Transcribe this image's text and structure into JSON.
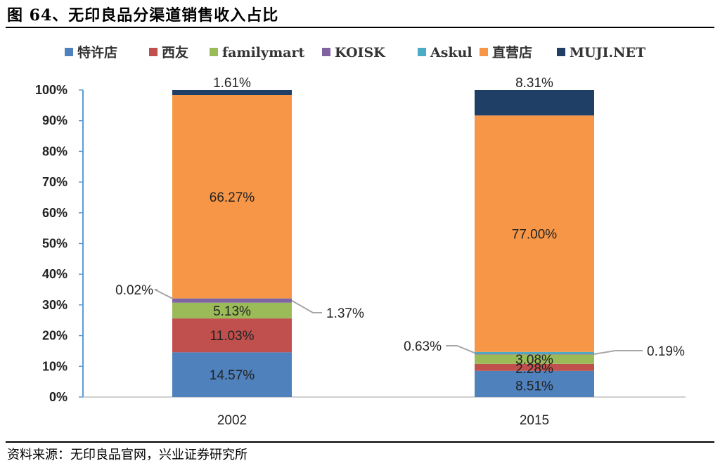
{
  "figure": {
    "title": "图 64、无印良品分渠道销售收入占比",
    "source": "资料来源：无印良品官网，兴业证券研究所"
  },
  "chart_data": {
    "type": "bar",
    "stacked": true,
    "percent": true,
    "categories": [
      "2002",
      "2015"
    ],
    "ylim": [
      0,
      100
    ],
    "yticks": [
      "0%",
      "10%",
      "20%",
      "30%",
      "40%",
      "50%",
      "60%",
      "70%",
      "80%",
      "90%",
      "100%"
    ],
    "series": [
      {
        "name": "特许店",
        "color": "#4F81BD",
        "values": [
          14.57,
          8.51
        ],
        "labels": [
          "14.57%",
          "8.51%"
        ]
      },
      {
        "name": "西友",
        "color": "#C0504D",
        "values": [
          11.03,
          2.28
        ],
        "labels": [
          "11.03%",
          "2.28%"
        ]
      },
      {
        "name": "familymart",
        "color": "#9BBB59",
        "values": [
          5.13,
          3.08
        ],
        "labels": [
          "5.13%",
          "3.08%"
        ]
      },
      {
        "name": "KOISK",
        "color": "#8064A2",
        "values": [
          1.37,
          0.19
        ],
        "labels": [
          "1.37%",
          "0.19%"
        ]
      },
      {
        "name": "Askul",
        "color": "#4BACC6",
        "values": [
          0.02,
          0.63
        ],
        "labels": [
          "0.02%",
          "0.63%"
        ]
      },
      {
        "name": "直营店",
        "color": "#F79646",
        "values": [
          66.27,
          77.0
        ],
        "labels": [
          "66.27%",
          "77.00%"
        ]
      },
      {
        "name": "MUJI.NET",
        "color": "#1F3F66",
        "values": [
          1.61,
          8.31
        ],
        "labels": [
          "1.61%",
          "8.31%"
        ]
      }
    ],
    "legend_position": "top",
    "grid": false
  }
}
